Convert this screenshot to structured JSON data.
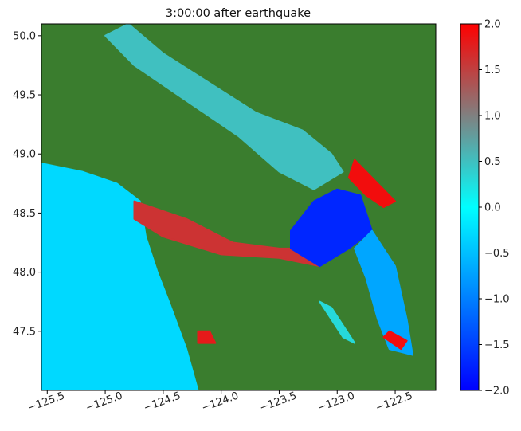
{
  "chart_data": {
    "type": "heatmap",
    "title": "3:00:00 after earthquake",
    "xlabel": "",
    "ylabel": "",
    "xlim": [
      -125.55,
      -122.15
    ],
    "ylim": [
      47.0,
      50.1
    ],
    "x_ticks": [
      -125.5,
      -125.0,
      -124.5,
      -124.0,
      -123.5,
      -123.0,
      -122.5
    ],
    "x_tick_labels": [
      "−125.5",
      "−125.0",
      "−124.5",
      "−124.0",
      "−123.5",
      "−123.0",
      "−122.5"
    ],
    "y_ticks": [
      47.5,
      48.0,
      48.5,
      49.0,
      49.5,
      50.0
    ],
    "y_tick_labels": [
      "47.5",
      "48.0",
      "48.5",
      "49.0",
      "49.5",
      "50.0"
    ],
    "colorbar": {
      "range": [
        -2.0,
        2.0
      ],
      "ticks": [
        -2.0,
        -1.5,
        -1.0,
        -0.5,
        0.0,
        0.5,
        1.0,
        1.5,
        2.0
      ],
      "tick_labels": [
        "−2.0",
        "−1.5",
        "−1.0",
        "−0.5",
        "0.0",
        "0.5",
        "1.0",
        "1.5",
        "2.0"
      ],
      "colors": [
        "#0000ff",
        "#00ffff",
        "#808080",
        "#ff0000"
      ]
    },
    "land_color": "#3a7d2e",
    "shore_color": "#7aaa1e",
    "grid": false,
    "water_regions": [
      {
        "name": "pacific-coast",
        "points": [
          [
            -125.55,
            48.92
          ],
          [
            -125.2,
            48.85
          ],
          [
            -124.9,
            48.75
          ],
          [
            -124.7,
            48.6
          ],
          [
            -124.65,
            48.3
          ],
          [
            -124.55,
            48.0
          ],
          [
            -124.45,
            47.75
          ],
          [
            -124.3,
            47.35
          ],
          [
            -124.2,
            47.0
          ],
          [
            -125.55,
            47.0
          ]
        ],
        "value": -0.3
      },
      {
        "name": "juan-de-fuca-strait",
        "points": [
          [
            -124.75,
            48.6
          ],
          [
            -124.3,
            48.45
          ],
          [
            -123.9,
            48.25
          ],
          [
            -123.5,
            48.2
          ],
          [
            -123.2,
            48.2
          ],
          [
            -123.15,
            48.05
          ],
          [
            -123.5,
            48.12
          ],
          [
            -124.0,
            48.15
          ],
          [
            -124.5,
            48.3
          ],
          [
            -124.75,
            48.45
          ]
        ],
        "value": 1.6
      },
      {
        "name": "haro-strait-san-juans",
        "points": [
          [
            -123.4,
            48.35
          ],
          [
            -123.2,
            48.6
          ],
          [
            -123.0,
            48.7
          ],
          [
            -122.8,
            48.65
          ],
          [
            -122.7,
            48.35
          ],
          [
            -122.9,
            48.2
          ],
          [
            -123.15,
            48.05
          ],
          [
            -123.4,
            48.2
          ]
        ],
        "value": -1.7
      },
      {
        "name": "strait-of-georgia",
        "points": [
          [
            -124.8,
            50.1
          ],
          [
            -124.5,
            49.85
          ],
          [
            -124.1,
            49.6
          ],
          [
            -123.7,
            49.35
          ],
          [
            -123.3,
            49.2
          ],
          [
            -123.05,
            49.0
          ],
          [
            -122.95,
            48.85
          ],
          [
            -123.2,
            48.7
          ],
          [
            -123.5,
            48.85
          ],
          [
            -123.85,
            49.15
          ],
          [
            -124.3,
            49.45
          ],
          [
            -124.75,
            49.75
          ],
          [
            -125.0,
            50.0
          ]
        ],
        "value": 0.5
      },
      {
        "name": "puget-sound",
        "points": [
          [
            -122.7,
            48.35
          ],
          [
            -122.5,
            48.05
          ],
          [
            -122.4,
            47.6
          ],
          [
            -122.35,
            47.3
          ],
          [
            -122.55,
            47.35
          ],
          [
            -122.65,
            47.6
          ],
          [
            -122.75,
            47.95
          ],
          [
            -122.85,
            48.2
          ]
        ],
        "value": -0.7
      },
      {
        "name": "boundary-bay",
        "points": [
          [
            -122.85,
            48.95
          ],
          [
            -122.65,
            48.75
          ],
          [
            -122.5,
            48.6
          ],
          [
            -122.6,
            48.55
          ],
          [
            -122.75,
            48.65
          ],
          [
            -122.9,
            48.8
          ]
        ],
        "value": 1.9
      },
      {
        "name": "tacoma-narrows",
        "points": [
          [
            -122.6,
            47.45
          ],
          [
            -122.45,
            47.35
          ],
          [
            -122.4,
            47.42
          ],
          [
            -122.55,
            47.5
          ]
        ],
        "value": 1.9
      },
      {
        "name": "hood-canal",
        "points": [
          [
            -123.15,
            47.75
          ],
          [
            -122.95,
            47.45
          ],
          [
            -122.85,
            47.4
          ],
          [
            -123.05,
            47.7
          ]
        ],
        "value": 0.3
      },
      {
        "name": "grays-harbor",
        "points": [
          [
            -124.2,
            47.4
          ],
          [
            -124.05,
            47.4
          ],
          [
            -124.1,
            47.5
          ],
          [
            -124.2,
            47.5
          ]
        ],
        "value": 1.8
      }
    ]
  }
}
